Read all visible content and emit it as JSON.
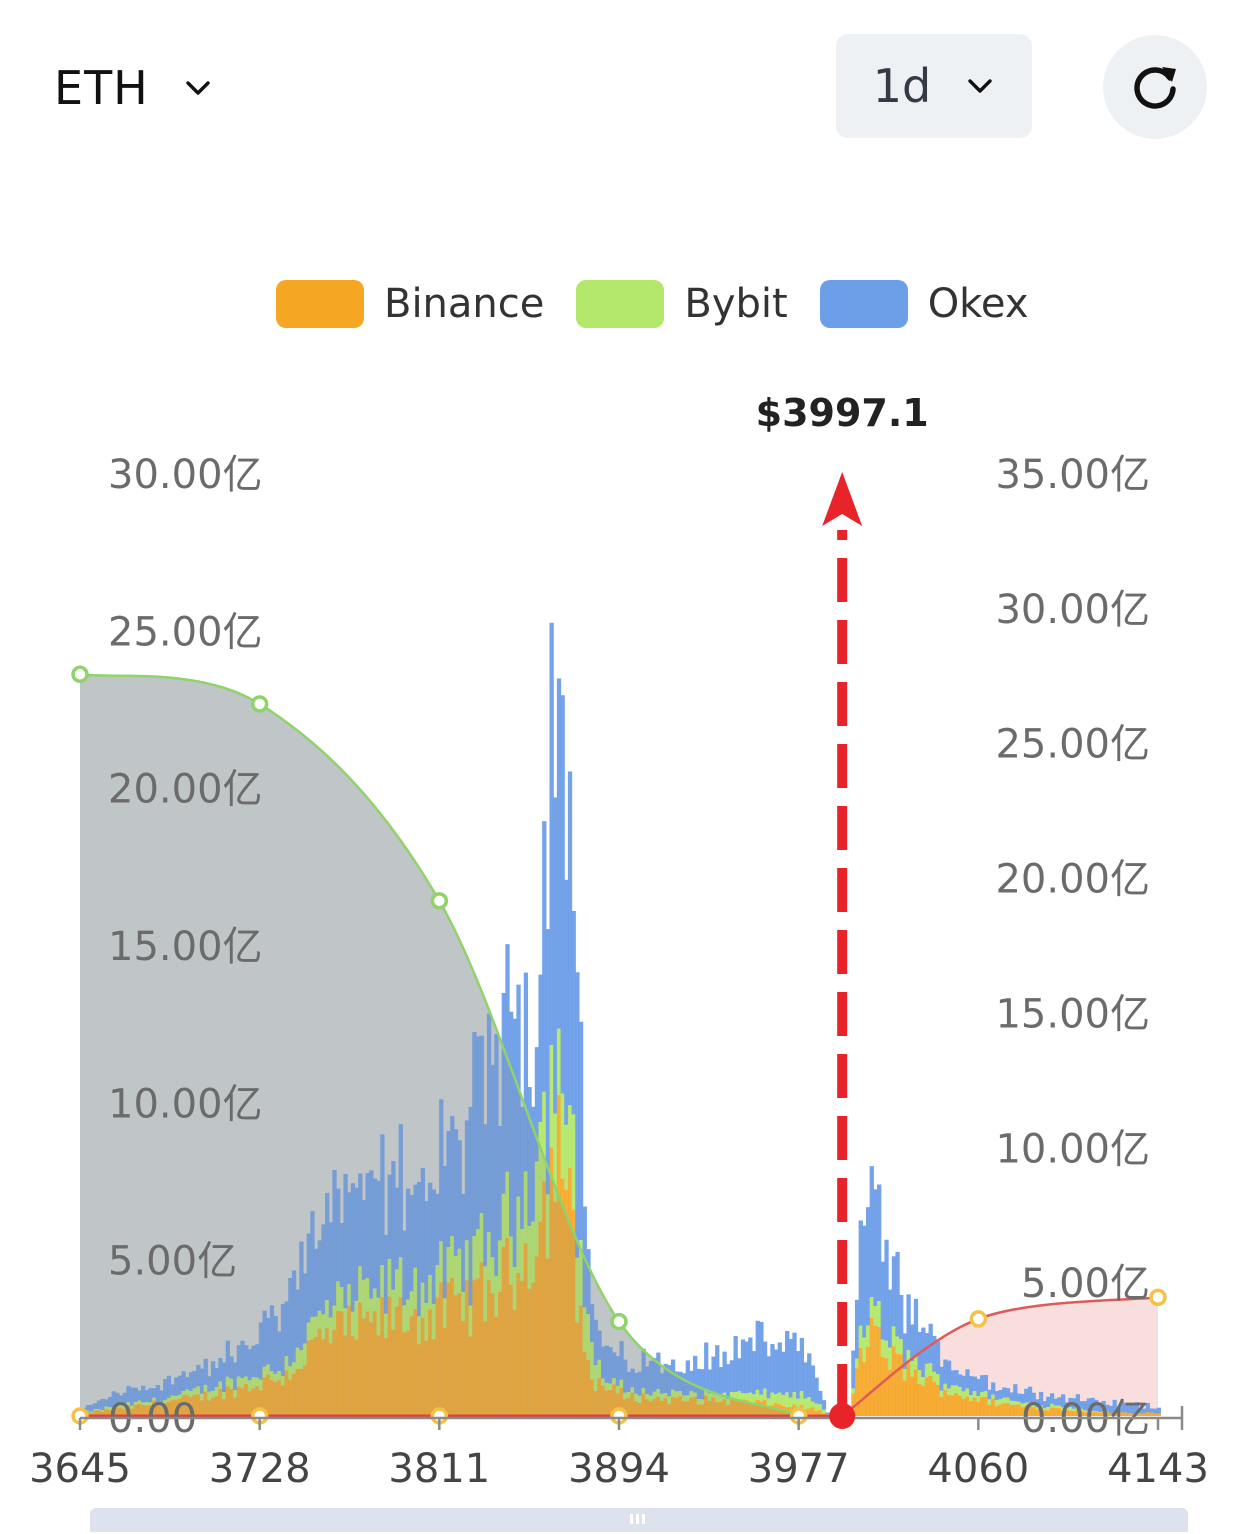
{
  "header": {
    "asset": "ETH",
    "period": "1d",
    "icons": {
      "asset_dropdown": "chevron-down-icon",
      "period_dropdown": "chevron-down-icon",
      "refresh": "refresh-icon"
    }
  },
  "chart_data": {
    "type": "bar",
    "title": "",
    "legend_position": "top-center",
    "series": [
      {
        "name": "Binance",
        "color": "#f5a623"
      },
      {
        "name": "Bybit",
        "color": "#b4e86c"
      },
      {
        "name": "Okex",
        "color": "#6d9ee8"
      }
    ],
    "current_price": 3997.1,
    "current_price_label": "$3997.1",
    "x_ticks": [
      "3645",
      "3728",
      "3811",
      "3894",
      "3977",
      "4060",
      "4143"
    ],
    "xlim": [
      3645,
      4143
    ],
    "left_axis": {
      "ticks": [
        "0.00",
        "5.00亿",
        "10.00亿",
        "15.00亿",
        "20.00亿",
        "25.00亿",
        "30.00亿"
      ],
      "ylim": [
        0,
        30
      ]
    },
    "right_axis": {
      "ticks": [
        "0.00亿",
        "5.00亿",
        "10.00亿",
        "15.00亿",
        "20.00亿",
        "25.00亿",
        "30.00亿",
        "35.00亿"
      ],
      "ylim": [
        0,
        35
      ]
    },
    "cumulative_long_liquidation": {
      "color": "#8fd36a",
      "fill": "#c9d0d3",
      "points": [
        [
          3645,
          27.5
        ],
        [
          3728,
          26.4
        ],
        [
          3811,
          19.1
        ],
        [
          3894,
          3.5
        ],
        [
          3977,
          0.0
        ]
      ]
    },
    "cumulative_short_liquidation": {
      "color": "#e05a5a",
      "fill": "#f9dede",
      "points": [
        [
          3997.1,
          0.0
        ],
        [
          4060,
          3.6
        ],
        [
          4143,
          4.4
        ]
      ]
    },
    "bar_profile": {
      "x": [
        3645,
        3660,
        3680,
        3700,
        3720,
        3740,
        3755,
        3765,
        3775,
        3785,
        3795,
        3805,
        3815,
        3825,
        3835,
        3845,
        3850,
        3855,
        3860,
        3866,
        3868,
        3875,
        3880,
        3885,
        3890,
        3900,
        3920,
        3940,
        3960,
        3975,
        3985,
        3990,
        3995,
        4000,
        4005,
        4010,
        4015,
        4025,
        4040,
        4060,
        4080,
        4100,
        4120,
        4143
      ],
      "binance": [
        0.1,
        0.2,
        0.4,
        0.6,
        0.9,
        1.3,
        2.4,
        2.7,
        2.8,
        3.0,
        3.2,
        3.1,
        3.4,
        3.6,
        4.0,
        4.6,
        5.2,
        5.8,
        7.0,
        9.0,
        8.0,
        3.2,
        1.2,
        1.0,
        0.8,
        0.6,
        0.5,
        0.5,
        0.4,
        0.3,
        0.2,
        0.0,
        0.0,
        0.0,
        2.2,
        2.5,
        2.1,
        1.5,
        0.9,
        0.5,
        0.3,
        0.2,
        0.1,
        0.1
      ],
      "bybit": [
        0.0,
        0.1,
        0.1,
        0.2,
        0.3,
        0.4,
        0.8,
        0.9,
        1.0,
        1.0,
        1.1,
        1.0,
        1.2,
        1.3,
        1.6,
        1.9,
        2.2,
        2.5,
        2.6,
        3.0,
        2.8,
        2.4,
        1.2,
        0.3,
        0.2,
        0.2,
        0.2,
        0.2,
        0.3,
        0.4,
        0.2,
        0.0,
        0.0,
        0.0,
        0.7,
        0.9,
        0.6,
        0.5,
        0.3,
        0.2,
        0.1,
        0.1,
        0.0,
        0.0
      ],
      "okex": [
        0.1,
        0.4,
        0.5,
        0.7,
        0.9,
        2.0,
        3.2,
        3.2,
        3.0,
        3.2,
        3.6,
        3.4,
        3.8,
        4.6,
        5.4,
        6.2,
        5.6,
        5.2,
        11.0,
        14.0,
        13.0,
        5.5,
        1.2,
        1.0,
        0.9,
        0.9,
        1.0,
        1.2,
        1.8,
        1.6,
        0.6,
        0.0,
        0.0,
        0.0,
        3.8,
        3.6,
        2.7,
        1.6,
        0.8,
        0.5,
        0.4,
        0.3,
        0.3,
        0.2
      ]
    }
  }
}
